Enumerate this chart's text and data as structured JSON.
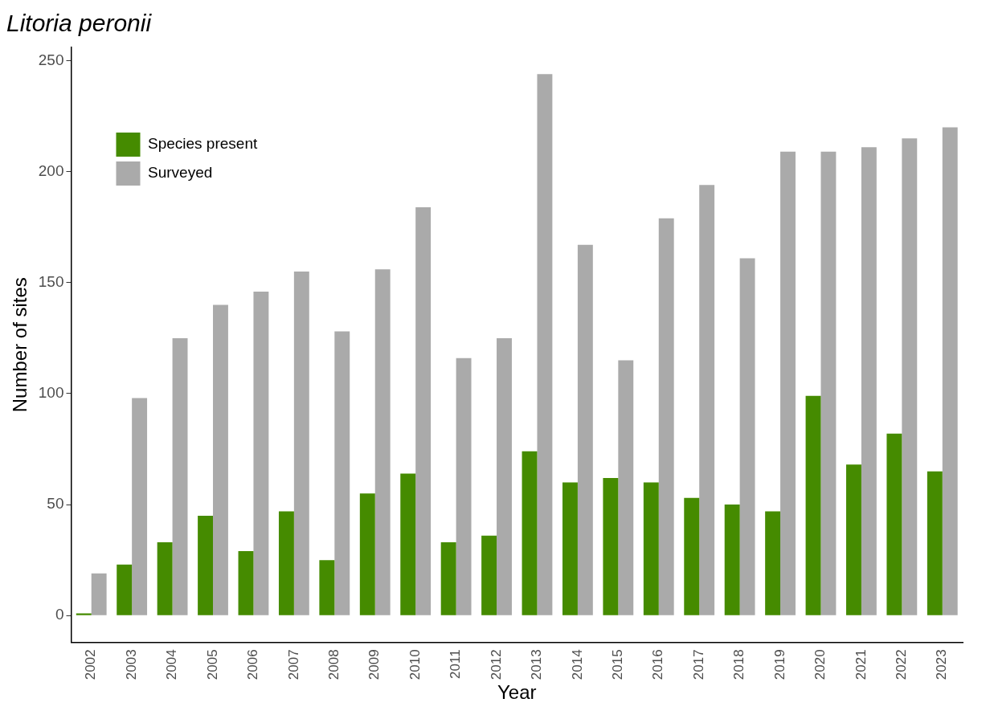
{
  "chart_data": {
    "type": "bar",
    "title": "Litoria peronii",
    "xlabel": "Year",
    "ylabel": "Number of sites",
    "categories": [
      "2002",
      "2003",
      "2004",
      "2005",
      "2006",
      "2007",
      "2008",
      "2009",
      "2010",
      "2011",
      "2012",
      "2013",
      "2014",
      "2015",
      "2016",
      "2017",
      "2018",
      "2019",
      "2020",
      "2021",
      "2022",
      "2023"
    ],
    "series": [
      {
        "name": "Species present",
        "color": "#458b00",
        "values": [
          1,
          23,
          33,
          45,
          29,
          47,
          25,
          55,
          64,
          33,
          36,
          74,
          60,
          62,
          60,
          53,
          50,
          47,
          99,
          68,
          82,
          65
        ]
      },
      {
        "name": "Surveyed",
        "color": "#aaaaaa",
        "values": [
          19,
          98,
          125,
          140,
          146,
          155,
          128,
          156,
          184,
          116,
          125,
          244,
          167,
          115,
          179,
          194,
          161,
          209,
          209,
          211,
          215,
          220
        ]
      }
    ],
    "ylim": [
      -12,
      256
    ],
    "yticks": [
      0,
      50,
      100,
      150,
      200,
      250
    ],
    "grid": false,
    "legend": "top left"
  }
}
